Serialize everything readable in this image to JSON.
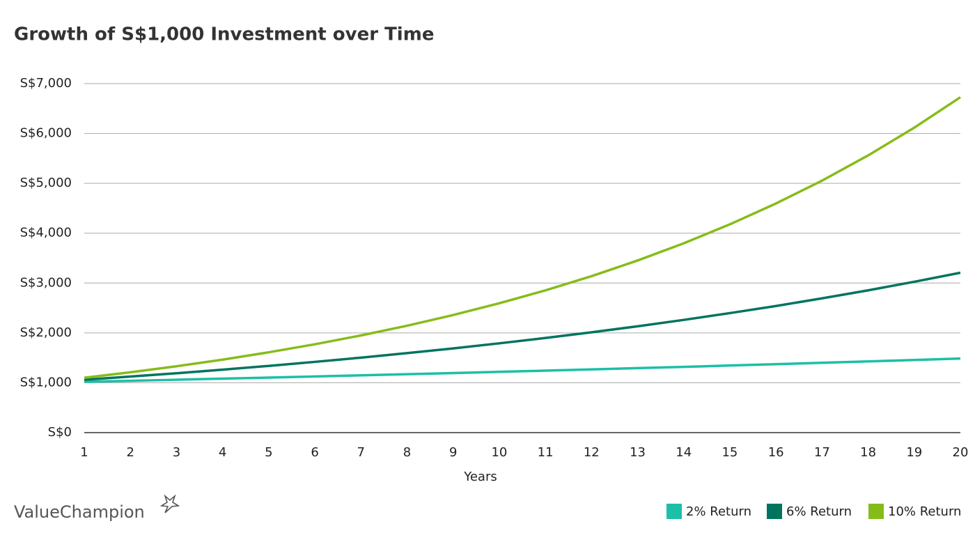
{
  "chart_data": {
    "type": "line",
    "title": "Growth of S$1,000 Investment over Time",
    "x_label": "Years",
    "brand": "ValueChampion",
    "x": [
      1,
      2,
      3,
      4,
      5,
      6,
      7,
      8,
      9,
      10,
      11,
      12,
      13,
      14,
      15,
      16,
      17,
      18,
      19,
      20
    ],
    "xlim": [
      1,
      20
    ],
    "xticks": [
      1,
      2,
      3,
      4,
      5,
      6,
      7,
      8,
      9,
      10,
      11,
      12,
      13,
      14,
      15,
      16,
      17,
      18,
      19,
      20
    ],
    "ylim": [
      0,
      7000
    ],
    "yticks": [
      {
        "value": 0,
        "label": "S$0"
      },
      {
        "value": 1000,
        "label": "S$1,000"
      },
      {
        "value": 2000,
        "label": "S$2,000"
      },
      {
        "value": 3000,
        "label": "S$3,000"
      },
      {
        "value": 4000,
        "label": "S$4,000"
      },
      {
        "value": 5000,
        "label": "S$5,000"
      },
      {
        "value": 6000,
        "label": "S$6,000"
      },
      {
        "value": 7000,
        "label": "S$7,000"
      }
    ],
    "grid": true,
    "legend": "bottom-right",
    "series": [
      {
        "name": "2% Return",
        "color": "#1cbfa7",
        "values": [
          1020,
          1040,
          1061,
          1082,
          1104,
          1126,
          1149,
          1172,
          1195,
          1219,
          1243,
          1268,
          1294,
          1319,
          1346,
          1373,
          1400,
          1428,
          1457,
          1486
        ]
      },
      {
        "name": "6% Return",
        "color": "#00745f",
        "values": [
          1060,
          1124,
          1191,
          1262,
          1338,
          1419,
          1504,
          1594,
          1689,
          1791,
          1898,
          2012,
          2133,
          2261,
          2397,
          2540,
          2693,
          2854,
          3026,
          3207
        ]
      },
      {
        "name": "10% Return",
        "color": "#86bc19",
        "values": [
          1100,
          1210,
          1331,
          1464,
          1611,
          1772,
          1949,
          2144,
          2358,
          2594,
          2853,
          3138,
          3452,
          3797,
          4177,
          4595,
          5054,
          5560,
          6116,
          6727
        ]
      }
    ]
  }
}
